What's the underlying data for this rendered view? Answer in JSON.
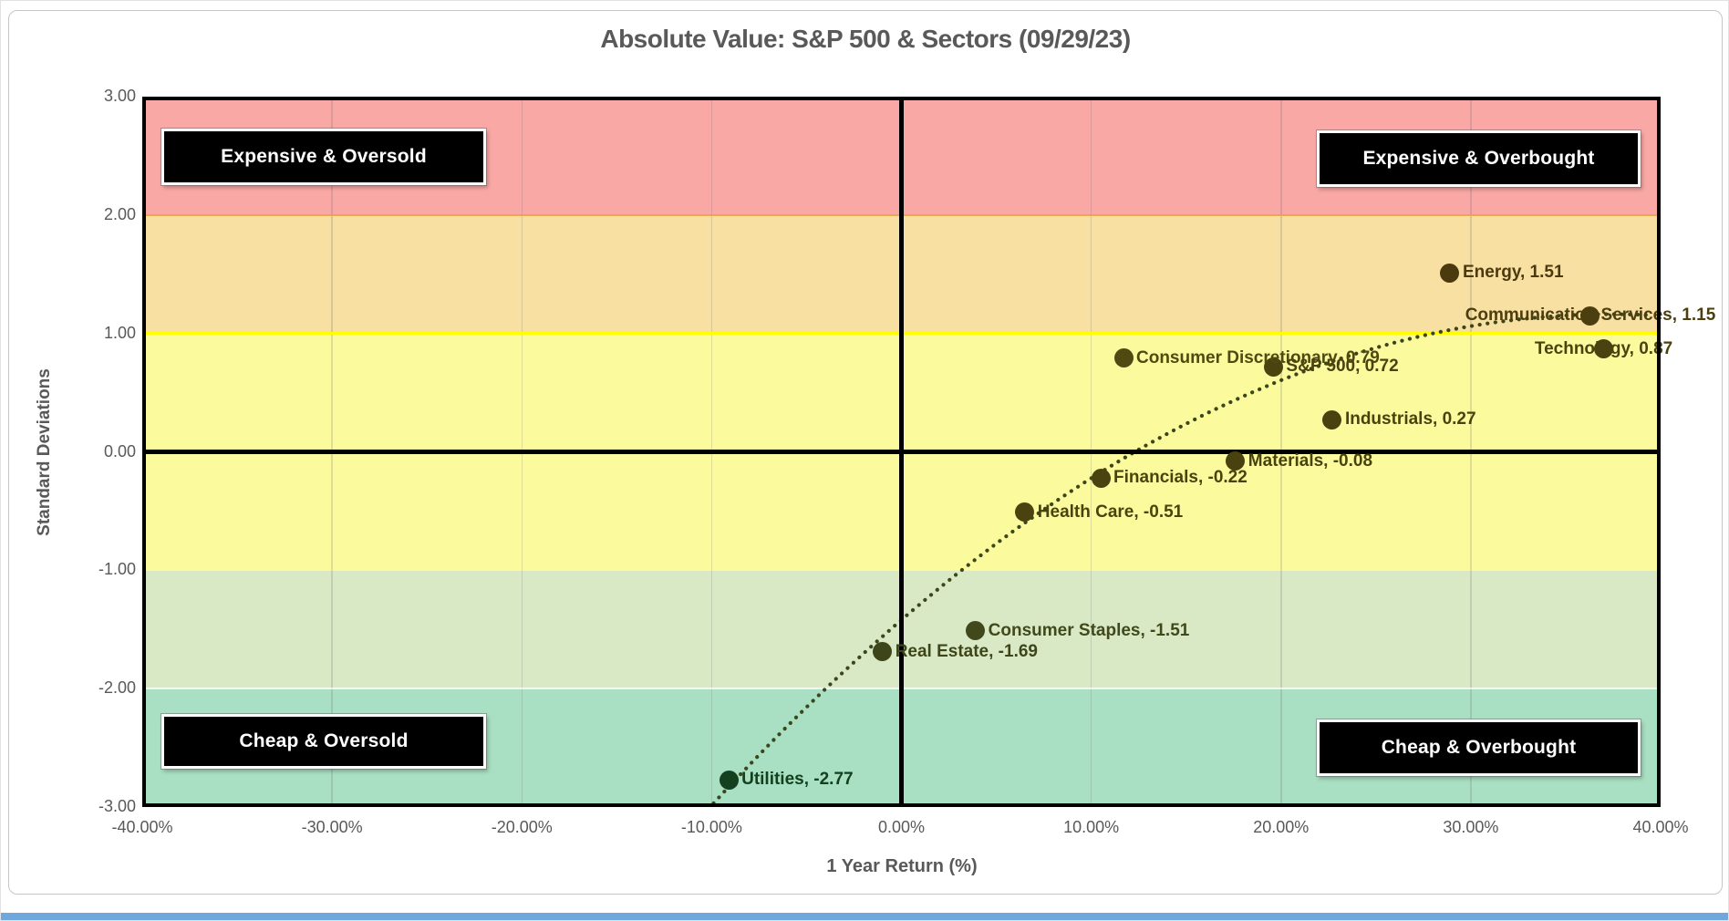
{
  "figure": {
    "title": "Absolute Value: S&P 500 & Sectors (09/29/23)"
  },
  "chart_data": {
    "type": "scatter",
    "title": "Absolute Value: S&P 500 & Sectors (09/29/23)",
    "xlabel": "1 Year Return (%)",
    "ylabel": "Standard Deviations",
    "xlim": [
      -40,
      40
    ],
    "ylim": [
      -3,
      3
    ],
    "grid": true,
    "legend_position": "none",
    "x_ticks": [
      {
        "value": -40,
        "label": "-40.00%"
      },
      {
        "value": -30,
        "label": "-30.00%"
      },
      {
        "value": -20,
        "label": "-20.00%"
      },
      {
        "value": -10,
        "label": "-10.00%"
      },
      {
        "value": 0,
        "label": "0.00%"
      },
      {
        "value": 10,
        "label": "10.00%"
      },
      {
        "value": 20,
        "label": "20.00%"
      },
      {
        "value": 30,
        "label": "30.00%"
      },
      {
        "value": 40,
        "label": "40.00%"
      }
    ],
    "y_ticks": [
      {
        "value": 3,
        "label": "3.00"
      },
      {
        "value": 2,
        "label": "2.00"
      },
      {
        "value": 1,
        "label": "1.00"
      },
      {
        "value": 0,
        "label": "0.00"
      },
      {
        "value": -1,
        "label": "-1.00"
      },
      {
        "value": -2,
        "label": "-2.00"
      },
      {
        "value": -3,
        "label": "-3.00"
      }
    ],
    "points": [
      {
        "name": "Energy",
        "x": 28.9,
        "y": 1.51,
        "label": "Energy, 1.51",
        "anchor": "right",
        "color": "#4b3a0e"
      },
      {
        "name": "Communication Services",
        "x": 36.3,
        "y": 1.15,
        "label": "Communication Services, 1.15",
        "anchor": "center",
        "color": "#4b3f10"
      },
      {
        "name": "Technology",
        "x": 37.0,
        "y": 0.87,
        "label": "Technology, 0.87",
        "anchor": "center",
        "color": "#4b430f"
      },
      {
        "name": "Consumer Discretionary",
        "x": 11.7,
        "y": 0.79,
        "label": "Consumer Discretionary, 0.79",
        "anchor": "right",
        "color": "#504a12"
      },
      {
        "name": "S&P 500",
        "x": 19.6,
        "y": 0.72,
        "label": "S&P 500, 0.72",
        "anchor": "right",
        "color": "#4b430f"
      },
      {
        "name": "Industrials",
        "x": 22.7,
        "y": 0.27,
        "label": "Industrials, 0.27",
        "anchor": "right",
        "color": "#4a420e"
      },
      {
        "name": "Materials",
        "x": 17.6,
        "y": -0.08,
        "label": "Materials, -0.08",
        "anchor": "right",
        "color": "#4a420e"
      },
      {
        "name": "Financials",
        "x": 10.5,
        "y": -0.22,
        "label": "Financials, -0.22",
        "anchor": "right",
        "color": "#4b430f"
      },
      {
        "name": "Health Care",
        "x": 6.5,
        "y": -0.51,
        "label": "Health Care, -0.51",
        "anchor": "right",
        "color": "#4b430f"
      },
      {
        "name": "Consumer Staples",
        "x": 3.9,
        "y": -1.51,
        "label": "Consumer Staples, -1.51",
        "anchor": "right",
        "color": "#41491c"
      },
      {
        "name": "Real Estate",
        "x": -1.0,
        "y": -1.69,
        "label": "Real Estate, -1.69",
        "anchor": "right",
        "color": "#3d4519"
      },
      {
        "name": "Utilities",
        "x": -9.1,
        "y": -2.77,
        "label": "Utilities, -2.77",
        "anchor": "right",
        "color": "#14401f"
      }
    ],
    "trendline": {
      "type": "polynomial-2",
      "a": -1.4197,
      "b": 0.13815,
      "c": -0.0018478,
      "x_start": -9.9,
      "x_end": 40,
      "style": "dotted",
      "color": "#3c461a"
    },
    "quadrant_labels": [
      {
        "text": "Expensive & Oversold",
        "position": "top-left"
      },
      {
        "text": "Expensive & Overbought",
        "position": "top-right"
      },
      {
        "text": "Cheap & Oversold",
        "position": "bottom-left"
      },
      {
        "text": "Cheap & Overbought",
        "position": "bottom-right"
      }
    ],
    "bands": [
      {
        "from": 2,
        "to": 3,
        "color": "#f9a8a5"
      },
      {
        "from": 1,
        "to": 2,
        "color": "#f8dfa2"
      },
      {
        "from": 0,
        "to": 1,
        "color": "#fbfb9d"
      },
      {
        "from": -1,
        "to": 0,
        "color": "#fbfb9d"
      },
      {
        "from": -2,
        "to": -1,
        "color": "#d9e9c6"
      },
      {
        "from": -3,
        "to": -2,
        "color": "#a9dfc2"
      }
    ],
    "special_gridlines": [
      {
        "y": 2,
        "color": "rgba(232,163,61,0.85)",
        "width": 2.5
      },
      {
        "y": 1,
        "color": "#ffff00",
        "width": 3
      },
      {
        "y": -1,
        "color": "rgba(255,255,255,0.45)",
        "width": 1
      },
      {
        "y": -2,
        "color": "rgba(255,255,255,0.75)",
        "width": 2
      }
    ]
  },
  "colors": {
    "title_text": "#595959",
    "axis_text": "#595959",
    "quadrant_bg": "#000000",
    "quadrant_text": "#ffffff",
    "plot_border": "#000000",
    "bottom_strip": "#6fa8dc"
  }
}
